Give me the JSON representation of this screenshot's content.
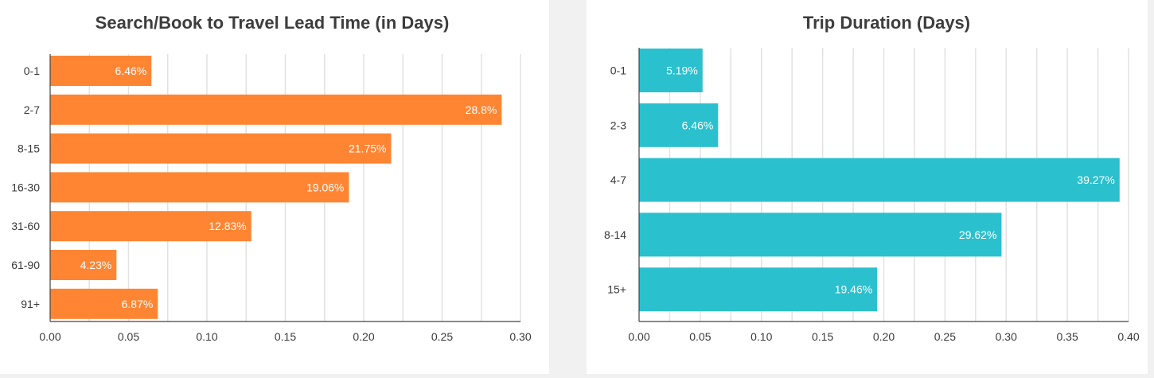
{
  "chart_data": [
    {
      "type": "bar",
      "orientation": "horizontal",
      "title": "Search/Book to Travel Lead Time (in Days)",
      "categories": [
        "0-1",
        "2-7",
        "8-15",
        "16-30",
        "31-60",
        "61-90",
        "91+"
      ],
      "values": [
        0.0646,
        0.288,
        0.2175,
        0.1906,
        0.1283,
        0.0423,
        0.0687
      ],
      "data_labels": [
        "6.46%",
        "28.8%",
        "21.75%",
        "19.06%",
        "12.83%",
        "4.23%",
        "6.87%"
      ],
      "xticks": [
        "0.00",
        "0.05",
        "0.10",
        "0.15",
        "0.20",
        "0.25",
        "0.30"
      ],
      "xlim": [
        0,
        0.3
      ],
      "color": "#ff8533",
      "grid": true
    },
    {
      "type": "bar",
      "orientation": "horizontal",
      "title": "Trip Duration (Days)",
      "categories": [
        "0-1",
        "2-3",
        "4-7",
        "8-14",
        "15+"
      ],
      "values": [
        0.0519,
        0.0646,
        0.3927,
        0.2962,
        0.1946
      ],
      "data_labels": [
        "5.19%",
        "6.46%",
        "39.27%",
        "29.62%",
        "19.46%"
      ],
      "xticks": [
        "0.00",
        "0.05",
        "0.10",
        "0.15",
        "0.20",
        "0.25",
        "0.30",
        "0.35",
        "0.40"
      ],
      "xlim": [
        0,
        0.4
      ],
      "color": "#2bc0ce",
      "grid": true
    }
  ]
}
